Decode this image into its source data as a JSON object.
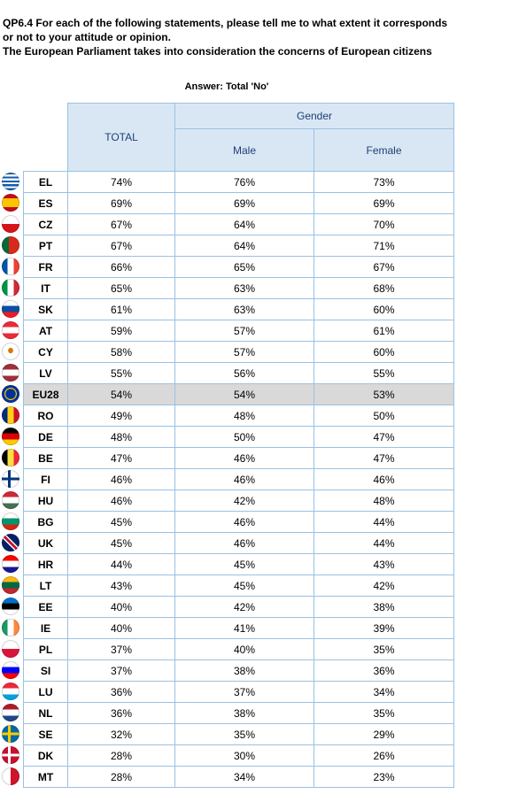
{
  "title_lines": [
    "QP6.4 For each of the following statements, please tell me to what extent it corresponds",
    "or not to your attitude or opinion.",
    "The European Parliament takes into consideration the concerns of European citizens"
  ],
  "answer_label": "Answer: Total 'No'",
  "headers": {
    "total": "TOTAL",
    "gender": "Gender",
    "male": "Male",
    "female": "Female"
  },
  "chart_data": {
    "type": "table",
    "columns": [
      "TOTAL",
      "Male",
      "Female"
    ],
    "highlight_row": "EU28",
    "rows": [
      {
        "code": "EL",
        "total": "74%",
        "male": "76%",
        "female": "73%",
        "flag": "flag-el-icon",
        "colors": [
          "#0d5eaf",
          "#ffffff"
        ]
      },
      {
        "code": "ES",
        "total": "69%",
        "male": "69%",
        "female": "69%",
        "flag": "flag-es-icon",
        "colors": [
          "#c60b1e",
          "#ffc400",
          "#c60b1e"
        ]
      },
      {
        "code": "CZ",
        "total": "67%",
        "male": "64%",
        "female": "70%",
        "flag": "flag-cz-icon",
        "colors": [
          "#ffffff",
          "#d7141a"
        ]
      },
      {
        "code": "PT",
        "total": "67%",
        "male": "64%",
        "female": "71%",
        "flag": "flag-pt-icon",
        "colors": [
          "#046a38",
          "#da291c"
        ]
      },
      {
        "code": "FR",
        "total": "66%",
        "male": "65%",
        "female": "67%",
        "flag": "flag-fr-icon",
        "colors": [
          "#0055a4",
          "#ffffff",
          "#ef4135"
        ]
      },
      {
        "code": "IT",
        "total": "65%",
        "male": "63%",
        "female": "68%",
        "flag": "flag-it-icon",
        "colors": [
          "#009246",
          "#ffffff",
          "#ce2b37"
        ]
      },
      {
        "code": "SK",
        "total": "61%",
        "male": "63%",
        "female": "60%",
        "flag": "flag-sk-icon",
        "colors": [
          "#ffffff",
          "#0b4ea2",
          "#ee1c25"
        ]
      },
      {
        "code": "AT",
        "total": "59%",
        "male": "57%",
        "female": "61%",
        "flag": "flag-at-icon",
        "colors": [
          "#ed2939",
          "#ffffff",
          "#ed2939"
        ]
      },
      {
        "code": "CY",
        "total": "58%",
        "male": "57%",
        "female": "60%",
        "flag": "flag-cy-icon",
        "colors": [
          "#ffffff",
          "#d57800"
        ]
      },
      {
        "code": "LV",
        "total": "55%",
        "male": "56%",
        "female": "55%",
        "flag": "flag-lv-icon",
        "colors": [
          "#9e3039",
          "#ffffff",
          "#9e3039"
        ]
      },
      {
        "code": "EU28",
        "total": "54%",
        "male": "54%",
        "female": "53%",
        "flag": "flag-eu-icon",
        "colors": [
          "#003399",
          "#ffcc00"
        ]
      },
      {
        "code": "RO",
        "total": "49%",
        "male": "48%",
        "female": "50%",
        "flag": "flag-ro-icon",
        "colors": [
          "#002b7f",
          "#fcd116",
          "#ce1126"
        ]
      },
      {
        "code": "DE",
        "total": "48%",
        "male": "50%",
        "female": "47%",
        "flag": "flag-de-icon",
        "colors": [
          "#000000",
          "#dd0000",
          "#ffce00"
        ]
      },
      {
        "code": "BE",
        "total": "47%",
        "male": "46%",
        "female": "47%",
        "flag": "flag-be-icon",
        "colors": [
          "#000000",
          "#fae042",
          "#ed2939"
        ]
      },
      {
        "code": "FI",
        "total": "46%",
        "male": "46%",
        "female": "46%",
        "flag": "flag-fi-icon",
        "colors": [
          "#ffffff",
          "#003580"
        ]
      },
      {
        "code": "HU",
        "total": "46%",
        "male": "42%",
        "female": "48%",
        "flag": "flag-hu-icon",
        "colors": [
          "#ce2939",
          "#ffffff",
          "#477050"
        ]
      },
      {
        "code": "BG",
        "total": "45%",
        "male": "46%",
        "female": "44%",
        "flag": "flag-bg-icon",
        "colors": [
          "#ffffff",
          "#00966e",
          "#d62612"
        ]
      },
      {
        "code": "UK",
        "total": "45%",
        "male": "46%",
        "female": "44%",
        "flag": "flag-uk-icon",
        "colors": [
          "#012169",
          "#ffffff",
          "#c8102e"
        ]
      },
      {
        "code": "HR",
        "total": "44%",
        "male": "45%",
        "female": "43%",
        "flag": "flag-hr-icon",
        "colors": [
          "#ff0000",
          "#ffffff",
          "#171796"
        ]
      },
      {
        "code": "LT",
        "total": "43%",
        "male": "45%",
        "female": "42%",
        "flag": "flag-lt-icon",
        "colors": [
          "#fdb913",
          "#006a44",
          "#c1272d"
        ]
      },
      {
        "code": "EE",
        "total": "40%",
        "male": "42%",
        "female": "38%",
        "flag": "flag-ee-icon",
        "colors": [
          "#0072ce",
          "#000000",
          "#ffffff"
        ]
      },
      {
        "code": "IE",
        "total": "40%",
        "male": "41%",
        "female": "39%",
        "flag": "flag-ie-icon",
        "colors": [
          "#169b62",
          "#ffffff",
          "#ff883e"
        ]
      },
      {
        "code": "PL",
        "total": "37%",
        "male": "40%",
        "female": "35%",
        "flag": "flag-pl-icon",
        "colors": [
          "#ffffff",
          "#dc143c"
        ]
      },
      {
        "code": "SI",
        "total": "37%",
        "male": "38%",
        "female": "36%",
        "flag": "flag-si-icon",
        "colors": [
          "#ffffff",
          "#0000ff",
          "#ff0000"
        ]
      },
      {
        "code": "LU",
        "total": "36%",
        "male": "37%",
        "female": "34%",
        "flag": "flag-lu-icon",
        "colors": [
          "#ed2939",
          "#ffffff",
          "#00a1de"
        ]
      },
      {
        "code": "NL",
        "total": "36%",
        "male": "38%",
        "female": "35%",
        "flag": "flag-nl-icon",
        "colors": [
          "#ae1c28",
          "#ffffff",
          "#21468b"
        ]
      },
      {
        "code": "SE",
        "total": "32%",
        "male": "35%",
        "female": "29%",
        "flag": "flag-se-icon",
        "colors": [
          "#006aa7",
          "#fecc00"
        ]
      },
      {
        "code": "DK",
        "total": "28%",
        "male": "30%",
        "female": "26%",
        "flag": "flag-dk-icon",
        "colors": [
          "#c8102e",
          "#ffffff"
        ]
      },
      {
        "code": "MT",
        "total": "28%",
        "male": "34%",
        "female": "23%",
        "flag": "flag-mt-icon",
        "colors": [
          "#ffffff",
          "#cf142b"
        ]
      }
    ]
  }
}
